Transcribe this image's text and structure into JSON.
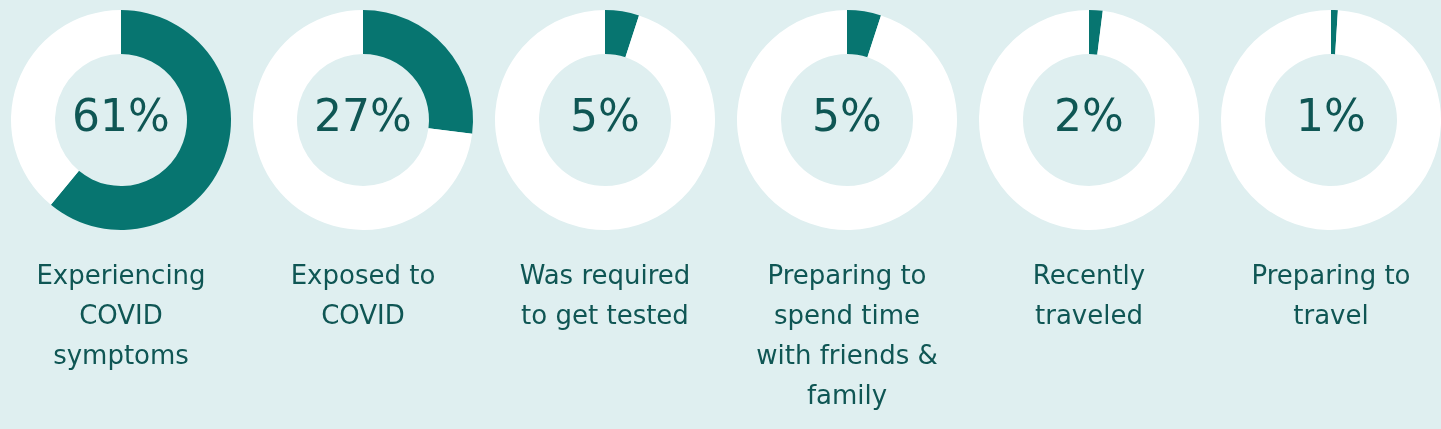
{
  "chart_data": [
    {
      "type": "donut",
      "title": "Experiencing COVID symptoms",
      "categories": [
        null,
        null
      ],
      "values": [
        61,
        39
      ],
      "colors": [
        "#077570",
        "#ffffff"
      ],
      "value_labels": [
        "61%",
        null
      ]
    },
    {
      "type": "donut",
      "title": "Exposed to COVID",
      "categories": [
        null,
        null
      ],
      "values": [
        27,
        73
      ],
      "colors": [
        "#077570",
        "#ffffff"
      ],
      "value_labels": [
        "27%",
        null
      ]
    },
    {
      "type": "donut",
      "title": "Was required to get tested",
      "categories": [
        null,
        null
      ],
      "values": [
        5,
        95
      ],
      "colors": [
        "#077570",
        "#ffffff"
      ],
      "value_labels": [
        "5%",
        null
      ]
    },
    {
      "type": "donut",
      "title": "Preparing to spend time with friends & family",
      "categories": [
        null,
        null
      ],
      "values": [
        5,
        95
      ],
      "colors": [
        "#077570",
        "#ffffff"
      ],
      "value_labels": [
        "5%",
        null
      ]
    },
    {
      "type": "donut",
      "title": "Recently traveled",
      "categories": [
        null,
        null
      ],
      "values": [
        2,
        98
      ],
      "colors": [
        "#077570",
        "#ffffff"
      ],
      "value_labels": [
        "2%",
        null
      ]
    },
    {
      "type": "donut",
      "title": "Preparing to travel",
      "categories": [
        null,
        null
      ],
      "values": [
        1,
        99
      ],
      "colors": [
        "#077570",
        "#ffffff"
      ],
      "value_labels": [
        "1%",
        null
      ]
    }
  ]
}
